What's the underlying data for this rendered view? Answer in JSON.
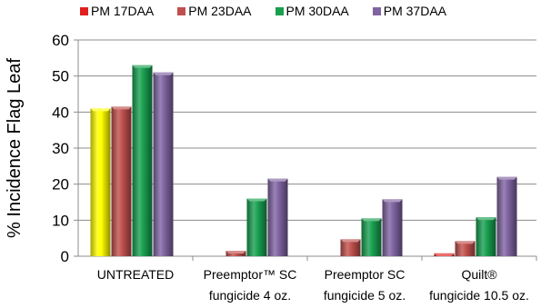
{
  "chart_data": {
    "type": "bar",
    "ylabel": "% Incidence Flag Leaf",
    "ylim": [
      0,
      60
    ],
    "yticks": [
      0,
      10,
      20,
      30,
      40,
      50,
      60
    ],
    "grid": true,
    "legend_position": "top",
    "categories": [
      [
        "UNTREATED"
      ],
      [
        "Preemptor™ SC",
        "fungicide 4 oz."
      ],
      [
        "Preemptor SC",
        "fungicide 5 oz."
      ],
      [
        "Quilt®",
        "fungicide 10.5 oz."
      ]
    ],
    "series": [
      {
        "name": "PM 17DAA",
        "color": "#e02020",
        "values": [
          41,
          0,
          0,
          0.8
        ]
      },
      {
        "name": "PM 23DAA",
        "color": "#c0504d",
        "values": [
          41.5,
          1.5,
          4.7,
          4.2
        ]
      },
      {
        "name": "PM 30DAA",
        "color": "#18a050",
        "values": [
          53,
          16,
          10.5,
          10.8
        ]
      },
      {
        "name": "PM 37DAA",
        "color": "#8064a2",
        "values": [
          51,
          21.5,
          15.8,
          22
        ]
      }
    ],
    "highlight_bar": {
      "series": 0,
      "category": 0,
      "color": "#ffff00"
    }
  }
}
